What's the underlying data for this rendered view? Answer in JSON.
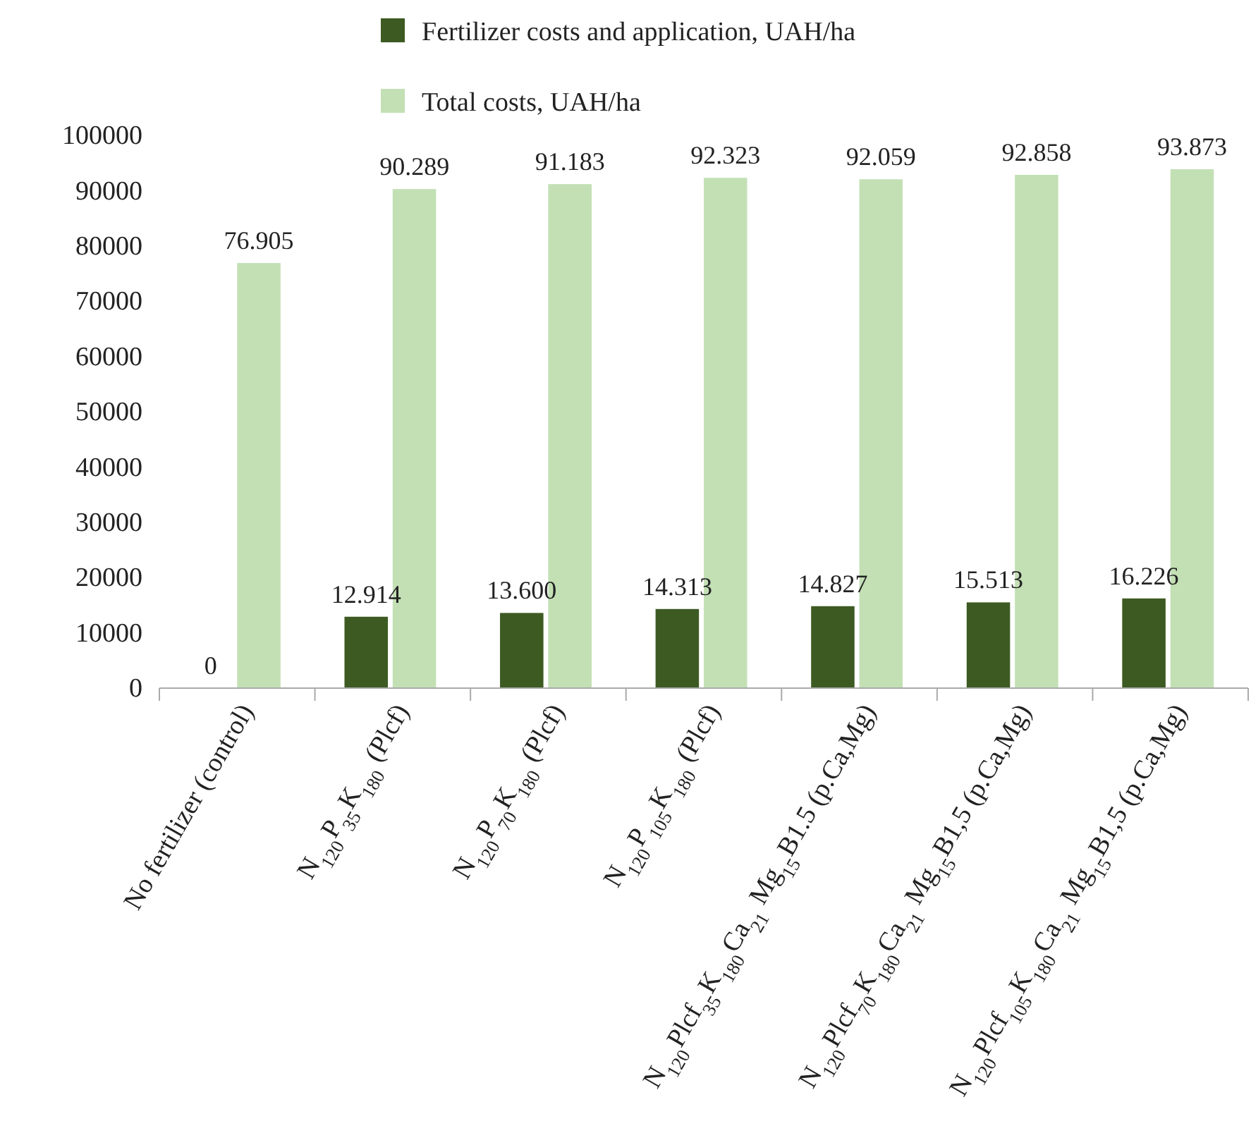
{
  "chart_data": {
    "type": "bar",
    "categories": [
      "No fertilizer (control)",
      "N$_{120}$P$_{35}$K$_{180}$ (Plcf)",
      "N$_{120}$P$_{70}$K$_{180}$ (Plcf)",
      "N$_{120}$P$_{105}$K$_{180}$ (Plcf)",
      "N$_{120}$Plcf$_{35}$K$_{180}$Ca$_{21}$ Mg$_{15}$B1.5 (p.Ca,Mg)",
      "N$_{120}$Plcf$_{70}$K$_{180}$Ca$_{21}$ Mg$_{15}$B1,5 (p.Ca,Mg)",
      "N$_{120}$Plcf$_{105}$K$_{180}$Ca$_{21}$ Mg$_{15}$B1,5 (p.Ca,Mg)"
    ],
    "series": [
      {
        "name": "Fertilizer costs and application, UAH/ha",
        "color": "#3d5a22",
        "values": [
          0,
          12914,
          13600,
          14313,
          14827,
          15513,
          16226
        ],
        "value_labels": [
          "0",
          "12.914",
          "13.600",
          "14.313",
          "14.827",
          "15.513",
          "16.226"
        ]
      },
      {
        "name": "Total costs, UAH/ha",
        "color": "#c3e0b5",
        "values": [
          76905,
          90289,
          91183,
          92323,
          92059,
          92858,
          93873
        ],
        "value_labels": [
          "76.905",
          "90.289",
          "91.183",
          "92.323",
          "92.059",
          "92.858",
          "93.873"
        ]
      }
    ],
    "ylim": [
      0,
      100000
    ],
    "yticks": [
      0,
      10000,
      20000,
      30000,
      40000,
      50000,
      60000,
      70000,
      80000,
      90000,
      100000
    ],
    "grid": false,
    "legend": "top"
  }
}
